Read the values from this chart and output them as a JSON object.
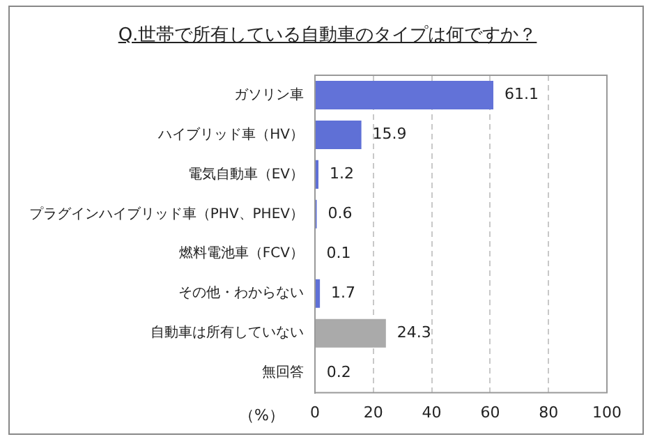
{
  "chart_data": {
    "type": "bar",
    "orientation": "horizontal",
    "title": "Q.世帯で所有している自動車のタイプは何ですか？",
    "xlabel": "（%）",
    "categories": [
      "ガソリン車",
      "ハイブリッド車（HV）",
      "電気自動車（EV）",
      "プラグインハイブリッド車（PHV、PHEV）",
      "燃料電池車（FCV）",
      "その他・わからない",
      "自動車は所有していない",
      "無回答"
    ],
    "values": [
      61.1,
      15.9,
      1.2,
      0.6,
      0.1,
      1.7,
      24.3,
      0.2
    ],
    "colors": [
      "#6272d8",
      "#5f70d6",
      "#5f70d6",
      "#5f70d6",
      "#5f70d6",
      "#5f70d6",
      "#aaaaaa",
      "#5f70d6"
    ],
    "xlim": [
      0,
      100
    ],
    "xticks": [
      0,
      20,
      40,
      60,
      80,
      100
    ],
    "grid": "x",
    "data_labels": true
  }
}
